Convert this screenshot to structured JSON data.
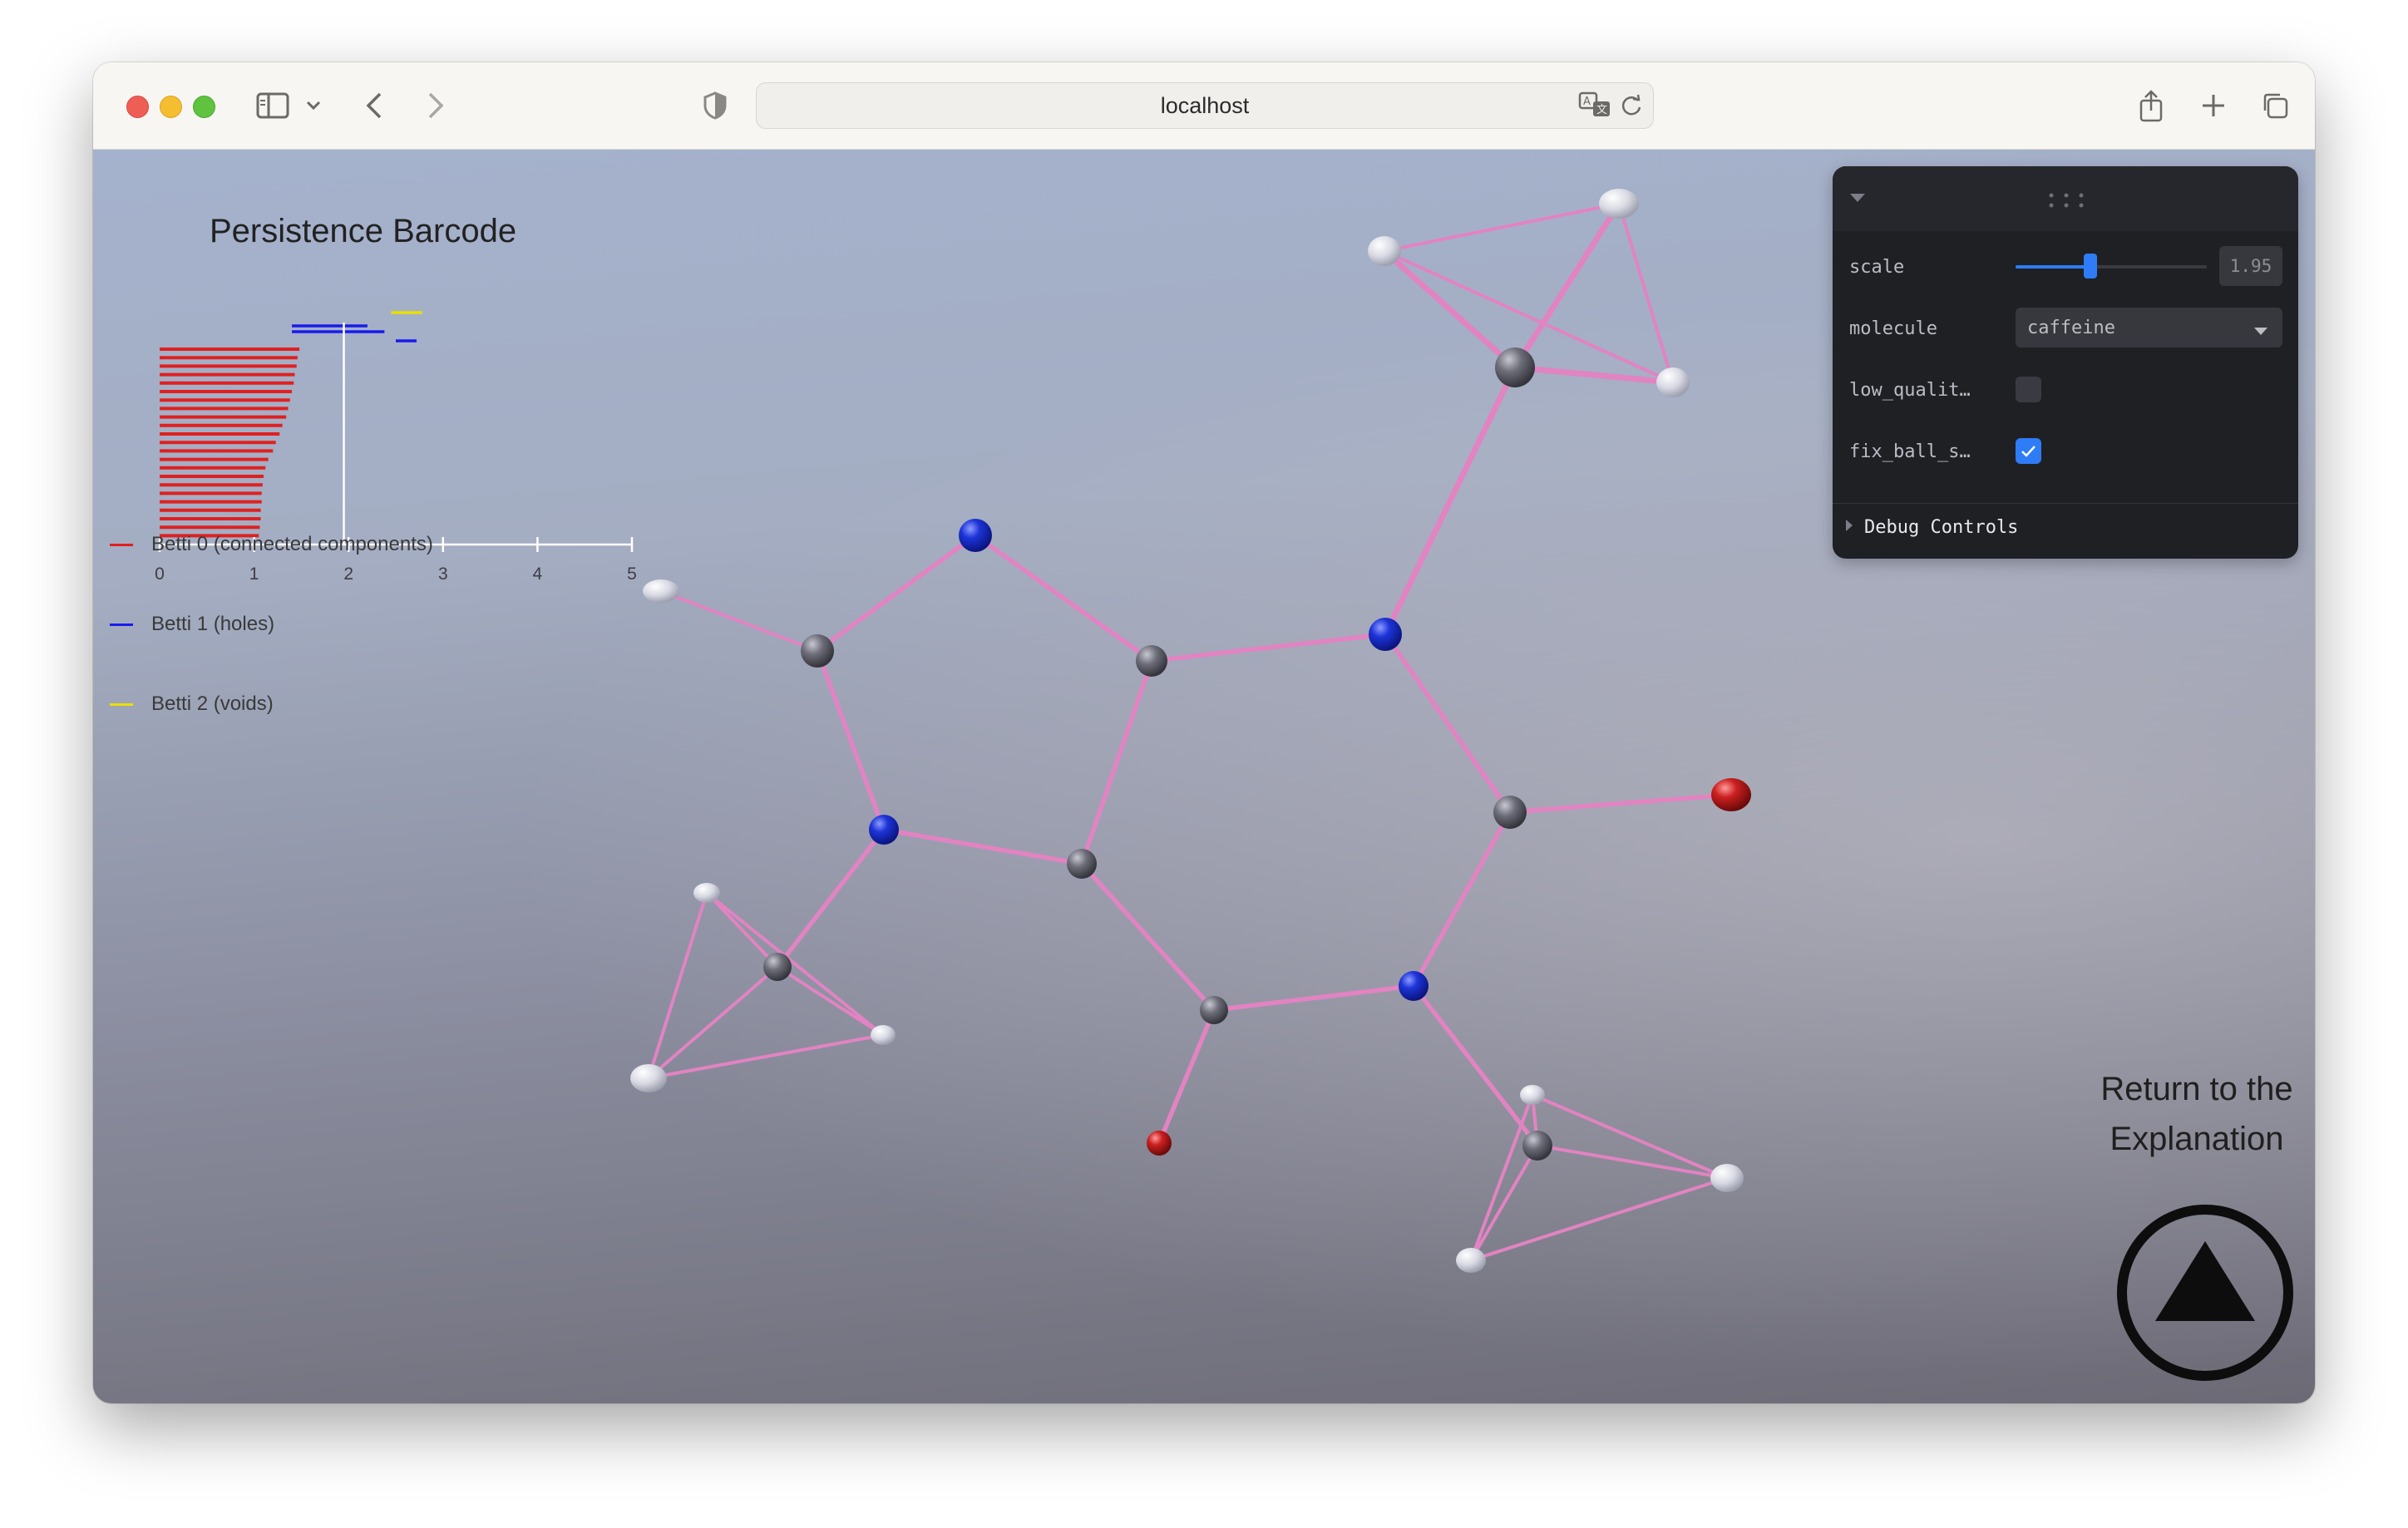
{
  "browser": {
    "url": "localhost"
  },
  "barcode": {
    "title": "Persistence Barcode",
    "axis_ticks": [
      "0",
      "1",
      "2",
      "3",
      "4",
      "5"
    ],
    "legend": [
      {
        "label": "Betti 0 (connected components)",
        "color": "#e02020"
      },
      {
        "label": "Betti 1 (holes)",
        "color": "#1a1aee"
      },
      {
        "label": "Betti 2 (voids)",
        "color": "#e8e000"
      }
    ]
  },
  "chart_data": {
    "type": "barcode",
    "title": "Persistence Barcode",
    "xlim": [
      0,
      5
    ],
    "threshold": 1.95,
    "series": [
      {
        "name": "Betti 0 (connected components)",
        "color": "#e02020",
        "intervals": [
          [
            0,
            1.48
          ],
          [
            0,
            1.46
          ],
          [
            0,
            1.45
          ],
          [
            0,
            1.43
          ],
          [
            0,
            1.42
          ],
          [
            0,
            1.4
          ],
          [
            0,
            1.38
          ],
          [
            0,
            1.36
          ],
          [
            0,
            1.34
          ],
          [
            0,
            1.3
          ],
          [
            0,
            1.27
          ],
          [
            0,
            1.23
          ],
          [
            0,
            1.2
          ],
          [
            0,
            1.15
          ],
          [
            0,
            1.12
          ],
          [
            0,
            1.1
          ],
          [
            0,
            1.09
          ],
          [
            0,
            1.08
          ],
          [
            0,
            1.08
          ],
          [
            0,
            1.07
          ],
          [
            0,
            1.07
          ],
          [
            0,
            1.06
          ],
          [
            0,
            1.05
          ]
        ]
      },
      {
        "name": "Betti 1 (holes)",
        "color": "#1a1aee",
        "intervals": [
          [
            1.4,
            2.2
          ],
          [
            1.4,
            2.38
          ],
          [
            2.5,
            2.72
          ]
        ]
      },
      {
        "name": "Betti 2 (voids)",
        "color": "#e8e000",
        "intervals": [
          [
            2.45,
            2.78
          ]
        ]
      }
    ]
  },
  "panel": {
    "scale_label": "scale",
    "scale_value": "1.95",
    "scale_fraction": 0.39,
    "molecule_label": "molecule",
    "molecule_value": "caffeine",
    "low_quality_label": "low_qualit…",
    "low_quality_checked": false,
    "fix_ball_label": "fix_ball_s…",
    "fix_ball_checked": true,
    "debug_label": "Debug Controls"
  },
  "return": {
    "line1": "Return to the",
    "line2": "Explanation"
  },
  "colors": {
    "bond": "#e283c2",
    "carbon": "#5e5f6a",
    "nitrogen": "#1a2ed0",
    "oxygen": "#c81e1e",
    "hydrogen": "#d9dae4"
  }
}
